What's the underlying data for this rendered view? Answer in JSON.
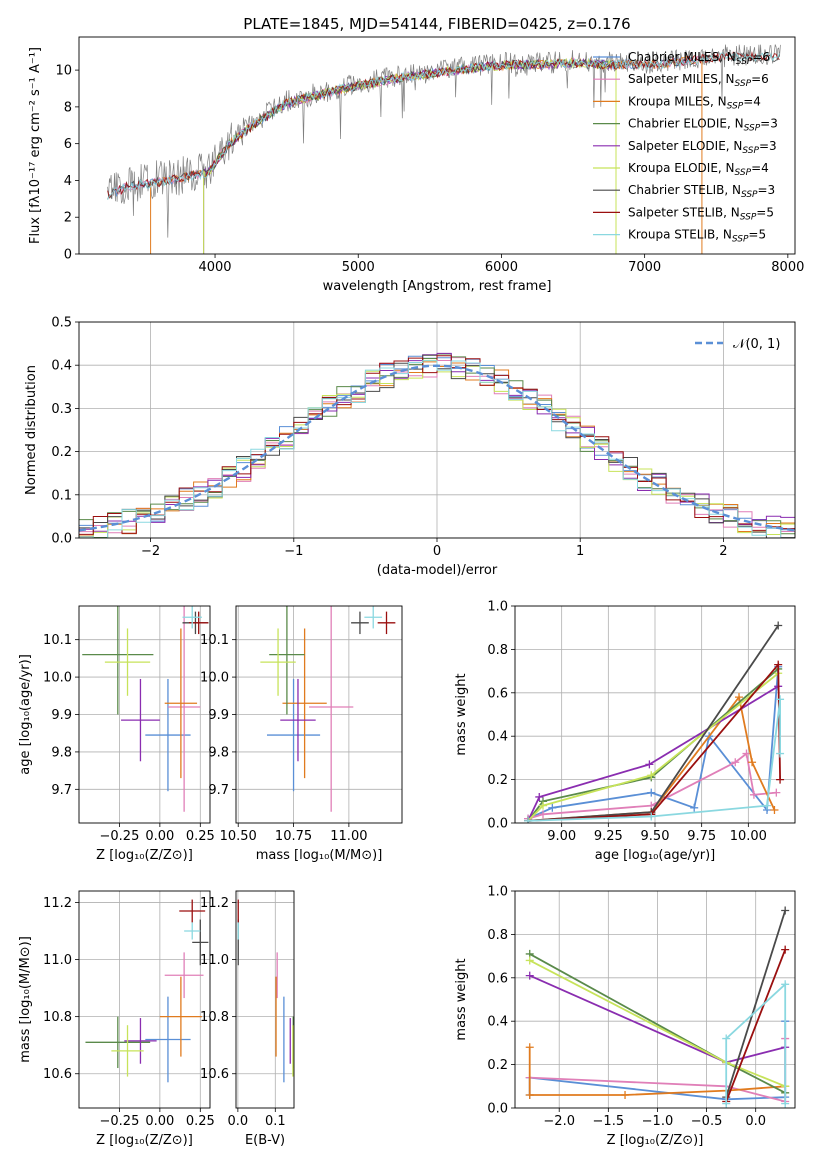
{
  "title": "PLATE=1845, MJD=54144, FIBERID=0425, z=0.176",
  "colors": {
    "Chabrier MILES": "#5a8fd6",
    "Salpeter MILES": "#e07fb8",
    "Kroupa MILES": "#e07b1f",
    "Chabrier ELODIE": "#5a8a4a",
    "Salpeter ELODIE": "#8a2db0",
    "Kroupa ELODIE": "#c7e35a",
    "Chabrier STELIB": "#4a4a4a",
    "Salpeter STELIB": "#9a0f0f",
    "Kroupa STELIB": "#8ad8e0",
    "data": "#808080",
    "gauss": "#5a8fd6"
  },
  "chart_data": [
    {
      "id": "spectrum",
      "type": "line",
      "title": "PLATE=1845, MJD=54144, FIBERID=0425, z=0.176",
      "xlabel": "wavelength [Angstrom, rest frame]",
      "ylabel": "Flux [fλ10⁻¹⁷ erg cm⁻² s⁻¹ A⁻¹]",
      "xlim": [
        3050,
        8050
      ],
      "ylim": [
        0,
        11.8
      ],
      "xticks": [
        4000,
        5000,
        6000,
        7000,
        8000
      ],
      "yticks": [
        0,
        2,
        4,
        6,
        8,
        10
      ],
      "grid": false,
      "legend_position": "right",
      "envelope": {
        "x": [
          3250,
          3400,
          3600,
          3800,
          3950,
          4100,
          4300,
          4500,
          4700,
          4900,
          5100,
          5300,
          5500,
          5700,
          5900,
          6100,
          6300,
          6500,
          6700,
          6900,
          7100,
          7300,
          7500
        ],
        "y": [
          3.3,
          3.8,
          4.0,
          4.3,
          4.5,
          6.1,
          7.3,
          8.3,
          8.7,
          9.1,
          9.4,
          9.7,
          9.9,
          10.1,
          10.3,
          10.4,
          10.4,
          10.5,
          10.4,
          10.4,
          10.4,
          10.6,
          10.8
        ]
      },
      "series": [
        {
          "name": "Chabrier MILES, N$_{SSP}$=6",
          "range": [
            3300,
            7400
          ]
        },
        {
          "name": "Salpeter MILES, N$_{SSP}$=6",
          "range": [
            3300,
            7400
          ]
        },
        {
          "name": "Kroupa MILES, N$_{SSP}$=4",
          "range": [
            3550,
            7400
          ]
        },
        {
          "name": "Chabrier ELODIE, N$_{SSP}$=3",
          "range": [
            3920,
            6800
          ]
        },
        {
          "name": "Salpeter ELODIE, N$_{SSP}$=3",
          "range": [
            3920,
            6800
          ]
        },
        {
          "name": "Kroupa ELODIE, N$_{SSP}$=4",
          "range": [
            3920,
            6800
          ]
        },
        {
          "name": "Chabrier STELIB, N$_{SSP}$=3",
          "range": [
            3250,
            7950
          ]
        },
        {
          "name": "Salpeter STELIB, N$_{SSP}$=5",
          "range": [
            3250,
            7950
          ]
        },
        {
          "name": "Kroupa STELIB, N$_{SSP}$=5",
          "range": [
            3250,
            7950
          ]
        }
      ]
    },
    {
      "id": "residuals",
      "type": "line",
      "xlabel": "(data-model)/error",
      "ylabel": "Normed distribution",
      "xlim": [
        -2.5,
        2.5
      ],
      "ylim": [
        0,
        0.5
      ],
      "xticks": [
        -2,
        -1,
        0,
        1,
        2
      ],
      "yticks": [
        0.0,
        0.1,
        0.2,
        0.3,
        0.4,
        0.5
      ],
      "grid": true,
      "legend": "𝒩(0, 1)",
      "legend_position": "top-right",
      "bin_width": 0.1,
      "gaussian": {
        "mu": 0,
        "sigma": 1
      }
    },
    {
      "id": "age_vs_Z",
      "type": "scatter",
      "xlabel": "Z [log₁₀(Z/Z⊙)]",
      "ylabel": "age  [log₁₀(age/yr)]",
      "xlim": [
        -0.5,
        0.31
      ],
      "ylim": [
        9.61,
        10.19
      ],
      "xticks": [
        -0.25,
        0.0,
        0.25
      ],
      "yticks": [
        9.7,
        9.8,
        9.9,
        10.0,
        10.1
      ],
      "grid": true,
      "points": [
        {
          "x": 0.05,
          "y": 9.845,
          "xerr": 0.14,
          "yerr": 0.15
        },
        {
          "x": 0.15,
          "y": 9.92,
          "xerr": 0.1,
          "yerr": 0.28
        },
        {
          "x": 0.13,
          "y": 9.93,
          "xerr": 0.1,
          "yerr": 0.2
        },
        {
          "x": -0.26,
          "y": 10.06,
          "xerr": 0.22,
          "yerr": 0.16
        },
        {
          "x": -0.12,
          "y": 9.885,
          "xerr": 0.12,
          "yerr": 0.11
        },
        {
          "x": -0.2,
          "y": 10.04,
          "xerr": 0.14,
          "yerr": 0.09
        },
        {
          "x": 0.22,
          "y": 10.145,
          "xerr": 0.08,
          "yerr": 0.03
        },
        {
          "x": 0.24,
          "y": 10.145,
          "xerr": 0.06,
          "yerr": 0.03
        },
        {
          "x": 0.2,
          "y": 10.16,
          "xerr": 0.06,
          "yerr": 0.03
        }
      ]
    },
    {
      "id": "age_vs_mass",
      "type": "scatter",
      "xlabel": "mass [log₁₀(M/M⊙)]",
      "ylabel": "",
      "xlim": [
        10.49,
        11.24
      ],
      "ylim": [
        9.61,
        10.19
      ],
      "xticks": [
        10.5,
        10.75,
        11.0
      ],
      "yticks": [
        9.7,
        9.8,
        9.9,
        10.0,
        10.1
      ],
      "grid": true,
      "points": [
        {
          "x": 10.75,
          "y": 9.845,
          "xerr": 0.12,
          "yerr": 0.15
        },
        {
          "x": 10.92,
          "y": 9.92,
          "xerr": 0.1,
          "yerr": 0.28
        },
        {
          "x": 10.8,
          "y": 9.93,
          "xerr": 0.1,
          "yerr": 0.2
        },
        {
          "x": 10.72,
          "y": 10.06,
          "xerr": 0.08,
          "yerr": 0.16
        },
        {
          "x": 10.77,
          "y": 9.885,
          "xerr": 0.08,
          "yerr": 0.11
        },
        {
          "x": 10.68,
          "y": 10.04,
          "xerr": 0.08,
          "yerr": 0.09
        },
        {
          "x": 11.05,
          "y": 10.145,
          "xerr": 0.04,
          "yerr": 0.03
        },
        {
          "x": 11.17,
          "y": 10.145,
          "xerr": 0.04,
          "yerr": 0.03
        },
        {
          "x": 11.11,
          "y": 10.16,
          "xerr": 0.04,
          "yerr": 0.03
        }
      ]
    },
    {
      "id": "weight_vs_age",
      "type": "line",
      "xlabel": "age  [log₁₀(age/yr)]",
      "ylabel": "mass weight",
      "xlim": [
        8.75,
        10.25
      ],
      "ylim": [
        0,
        1.0
      ],
      "xticks": [
        9.0,
        9.25,
        9.5,
        9.75,
        10.0
      ],
      "yticks": [
        0.0,
        0.2,
        0.4,
        0.6,
        0.8,
        1.0
      ],
      "grid": true,
      "series": [
        {
          "x": [
            8.82,
            8.95,
            9.48,
            9.71,
            9.79,
            10.1,
            10.16
          ],
          "y": [
            0.02,
            0.07,
            0.14,
            0.07,
            0.4,
            0.06,
            0.72
          ]
        },
        {
          "x": [
            8.82,
            8.9,
            9.48,
            9.93,
            9.99,
            10.03,
            10.15
          ],
          "y": [
            0.02,
            0.04,
            0.08,
            0.28,
            0.32,
            0.13,
            0.14
          ]
        },
        {
          "x": [
            8.82,
            9.48,
            9.95,
            10.02,
            10.14
          ],
          "y": [
            0.01,
            0.05,
            0.58,
            0.28,
            0.06
          ]
        },
        {
          "x": [
            8.82,
            8.9,
            9.48,
            10.16
          ],
          "y": [
            0.01,
            0.1,
            0.21,
            0.71
          ]
        },
        {
          "x": [
            8.82,
            8.88,
            9.47,
            10.16
          ],
          "y": [
            0.01,
            0.12,
            0.27,
            0.63
          ]
        },
        {
          "x": [
            8.82,
            8.9,
            9.48,
            10.16
          ],
          "y": [
            0.01,
            0.08,
            0.22,
            0.69
          ]
        },
        {
          "x": [
            8.82,
            9.48,
            10.16
          ],
          "y": [
            0.01,
            0.05,
            0.91
          ]
        },
        {
          "x": [
            8.82,
            9.48,
            10.16,
            10.17
          ],
          "y": [
            0.01,
            0.04,
            0.73,
            0.2
          ]
        },
        {
          "x": [
            8.82,
            9.48,
            10.1,
            10.17,
            10.17
          ],
          "y": [
            0.01,
            0.03,
            0.08,
            0.57,
            0.32
          ]
        }
      ]
    },
    {
      "id": "mass_vs_Z",
      "type": "scatter",
      "xlabel": "Z [log₁₀(Z/Z⊙)]",
      "ylabel": "mass [log₁₀(M/M⊙)]",
      "xlim": [
        -0.5,
        0.31
      ],
      "ylim": [
        10.48,
        11.24
      ],
      "xticks": [
        -0.25,
        0.0,
        0.25
      ],
      "yticks": [
        10.6,
        10.8,
        11.0,
        11.2
      ],
      "grid": true,
      "points": [
        {
          "x": 0.05,
          "y": 10.72,
          "xerr": 0.14,
          "yerr": 0.15
        },
        {
          "x": 0.15,
          "y": 10.945,
          "xerr": 0.12,
          "yerr": 0.08
        },
        {
          "x": 0.13,
          "y": 10.8,
          "xerr": 0.13,
          "yerr": 0.14
        },
        {
          "x": -0.26,
          "y": 10.71,
          "xerr": 0.2,
          "yerr": 0.09
        },
        {
          "x": -0.12,
          "y": 10.715,
          "xerr": 0.1,
          "yerr": 0.08
        },
        {
          "x": -0.2,
          "y": 10.68,
          "xerr": 0.1,
          "yerr": 0.09
        },
        {
          "x": 0.25,
          "y": 11.06,
          "xerr": 0.05,
          "yerr": 0.08
        },
        {
          "x": 0.2,
          "y": 11.17,
          "xerr": 0.08,
          "yerr": 0.04
        },
        {
          "x": 0.2,
          "y": 11.1,
          "xerr": 0.05,
          "yerr": 0.03
        }
      ]
    },
    {
      "id": "mass_vs_EBV",
      "type": "scatter",
      "xlabel": "E(B-V)",
      "ylabel": "",
      "xlim": [
        -0.005,
        0.15
      ],
      "ylim": [
        10.48,
        11.24
      ],
      "xticks": [
        0.0,
        0.1
      ],
      "yticks": [
        10.6,
        10.8,
        11.0,
        11.2
      ],
      "grid": true,
      "points": [
        {
          "x": 0.123,
          "y": 10.72,
          "xerr": 0,
          "yerr": 0.15
        },
        {
          "x": 0.105,
          "y": 10.945,
          "xerr": 0,
          "yerr": 0.08
        },
        {
          "x": 0.102,
          "y": 10.8,
          "xerr": 0,
          "yerr": 0.14
        },
        {
          "x": 0.148,
          "y": 10.71,
          "xerr": 0,
          "yerr": 0.09
        },
        {
          "x": 0.14,
          "y": 10.715,
          "xerr": 0,
          "yerr": 0.08
        },
        {
          "x": 0.147,
          "y": 10.68,
          "xerr": 0,
          "yerr": 0.09
        },
        {
          "x": 0.001,
          "y": 11.06,
          "xerr": 0,
          "yerr": 0.08
        },
        {
          "x": 0.001,
          "y": 11.17,
          "xerr": 0,
          "yerr": 0.04
        },
        {
          "x": 0.001,
          "y": 11.1,
          "xerr": 0,
          "yerr": 0.03
        }
      ]
    },
    {
      "id": "weight_vs_Z",
      "type": "line",
      "xlabel": "Z [log₁₀(Z/Z⊙)]",
      "ylabel": "mass weight",
      "xlim": [
        -2.45,
        0.4
      ],
      "ylim": [
        0,
        1.0
      ],
      "xticks": [
        -2.0,
        -1.5,
        -1.0,
        -0.5,
        0.0
      ],
      "yticks": [
        0.0,
        0.2,
        0.4,
        0.6,
        0.8,
        1.0
      ],
      "grid": true,
      "series": [
        {
          "x": [
            -2.3,
            -2.3,
            -0.3,
            0.3,
            0.3
          ],
          "y": [
            0.06,
            0.14,
            0.04,
            0.05,
            0.4
          ]
        },
        {
          "x": [
            -2.3,
            -0.3,
            0.3,
            0.3
          ],
          "y": [
            0.14,
            0.1,
            0.03,
            0.32
          ]
        },
        {
          "x": [
            -2.3,
            -2.3,
            -1.33,
            -0.3,
            0.3
          ],
          "y": [
            0.28,
            0.06,
            0.06,
            0.08,
            0.1
          ]
        },
        {
          "x": [
            -2.3,
            -0.3,
            0.3
          ],
          "y": [
            0.71,
            0.21,
            0.07
          ]
        },
        {
          "x": [
            -2.3,
            -0.3,
            0.3
          ],
          "y": [
            0.61,
            0.21,
            0.28
          ]
        },
        {
          "x": [
            -2.3,
            -0.3,
            0.3
          ],
          "y": [
            0.68,
            0.21,
            0.1
          ]
        },
        {
          "x": [
            -0.3,
            0.3
          ],
          "y": [
            0.05,
            0.91
          ]
        },
        {
          "x": [
            -0.3,
            0.3
          ],
          "y": [
            0.03,
            0.73
          ]
        },
        {
          "x": [
            -0.3,
            -0.3,
            0.3,
            0.3
          ],
          "y": [
            0.02,
            0.32,
            0.57,
            0.02
          ]
        }
      ]
    }
  ]
}
